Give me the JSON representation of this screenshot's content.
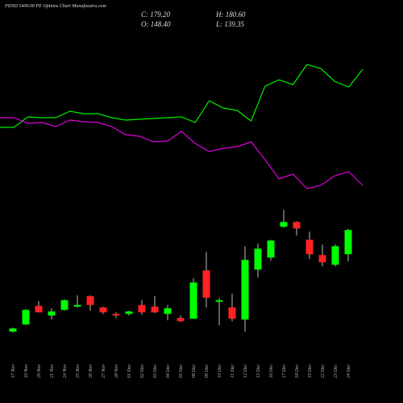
{
  "chart_data": {
    "type": "candlestick",
    "title": "PIIND 5400.00 PE Options Chart Munafasutra.com",
    "summary": [
      "C: 179.20",
      "H: 180.60",
      "O: 148.40",
      "L: 139.35"
    ],
    "categories": [
      "17 Nov",
      "19 Nov",
      "20 Nov",
      "21 Nov",
      "24 Nov",
      "25 Nov",
      "26 Nov",
      "27 Nov",
      "28 Nov",
      "01 Dec",
      "02 Dec",
      "03 Dec",
      "04 Dec",
      "05 Dec",
      "08 Dec",
      "09 Dec",
      "10 Dec",
      "11 Dec",
      "12 Dec",
      "15 Dec",
      "16 Dec",
      "17 Dec",
      "18 Dec",
      "19 Dec",
      "22 Dec",
      "23 Dec",
      "24 Dec"
    ],
    "open": [
      49.8,
      59.0,
      82.6,
      70.3,
      77.5,
      81.6,
      95.0,
      80.6,
      72.4,
      72.4,
      83.7,
      81.6,
      72.4,
      67.2,
      66.2,
      127.8,
      87.8,
      80.6,
      65.2,
      128.8,
      144.2,
      183.3,
      189.4,
      166.8,
      147.3,
      135.0,
      148.4
    ],
    "high": [
      54.9,
      78.5,
      88.8,
      79.6,
      90.9,
      96.0,
      96.0,
      81.6,
      74.4,
      76.5,
      89.8,
      95.0,
      83.7,
      70.3,
      117.6,
      151.4,
      92.9,
      98.0,
      158.6,
      161.7,
      166.8,
      204.8,
      190.4,
      177.1,
      160.7,
      160.7,
      180.6
    ],
    "low": [
      48.8,
      58.0,
      74.4,
      65.2,
      76.5,
      80.6,
      76.5,
      72.4,
      67.2,
      70.3,
      71.4,
      73.4,
      64.2,
      62.1,
      66.2,
      80.6,
      58.0,
      63.1,
      49.8,
      118.6,
      140.1,
      182.2,
      172.0,
      142.2,
      133.0,
      133.0,
      139.35
    ],
    "close": [
      53.9,
      77.5,
      74.4,
      75.5,
      89.8,
      83.7,
      83.7,
      74.4,
      70.3,
      75.5,
      74.4,
      74.4,
      79.6,
      63.1,
      112.4,
      92.9,
      89.8,
      66.2,
      141.2,
      155.5,
      165.8,
      189.4,
      181.2,
      148.4,
      138.1,
      158.6,
      179.2
    ],
    "up_color": "#00ff00",
    "down_color": "#ff2222",
    "ylim": [
      0,
      472
    ],
    "indicators": {
      "ylim": [
        0,
        300
      ],
      "series": [
        {
          "color": "#00ee00",
          "values": [
            142,
            142,
            155,
            154,
            154,
            162,
            159,
            159,
            154,
            151,
            152,
            153,
            154,
            155,
            148,
            175,
            166,
            163,
            150,
            193,
            201,
            195,
            220,
            215,
            199,
            192,
            214
          ]
        },
        {
          "color": "#dd00dd",
          "values": [
            154,
            154,
            147,
            148,
            143,
            151,
            149,
            148,
            143,
            133,
            131,
            124,
            125,
            137,
            122,
            112,
            116,
            118,
            124,
            102,
            78,
            84,
            66,
            70,
            82,
            87,
            70
          ]
        }
      ]
    }
  }
}
